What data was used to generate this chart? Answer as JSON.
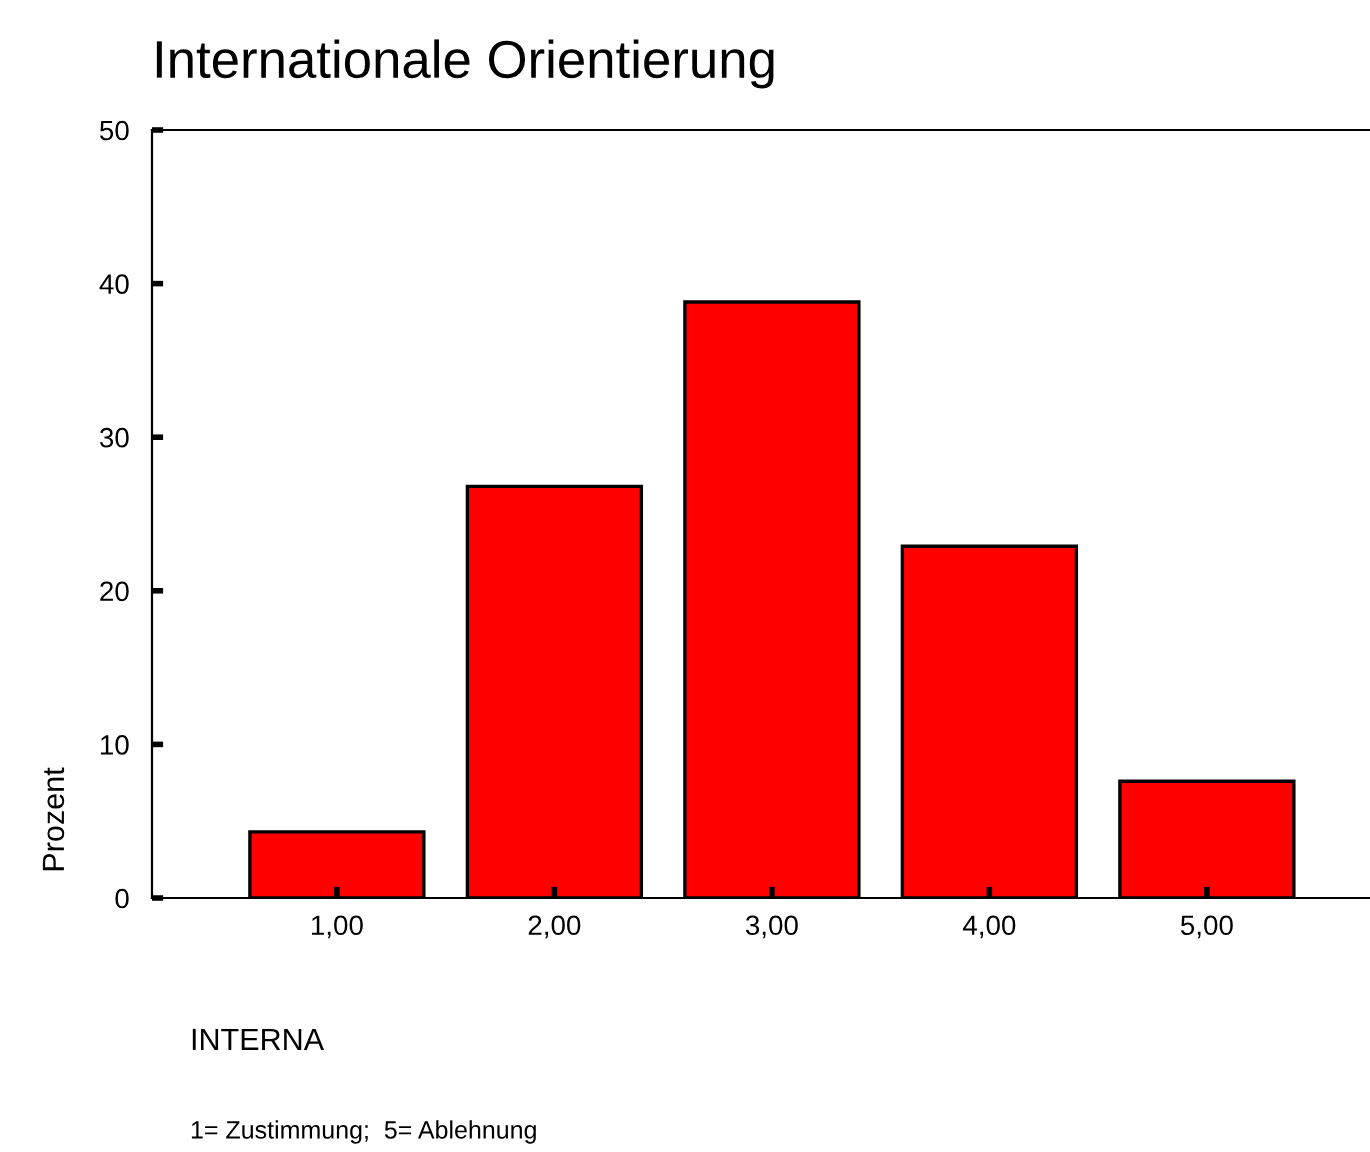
{
  "chart_data": {
    "type": "bar",
    "title": "Internationale Orientierung",
    "xlabel": "INTERNA",
    "ylabel": "Prozent",
    "annotations": [
      "1= Zustimmung;  5= Ablehnung"
    ],
    "categories": [
      "1,00",
      "2,00",
      "3,00",
      "4,00",
      "5,00"
    ],
    "values": [
      4.3,
      26.8,
      38.8,
      22.9,
      7.6
    ],
    "color": "#ff0000",
    "ylim": [
      0,
      50
    ],
    "yticks": [
      0,
      10,
      20,
      30,
      40,
      50
    ],
    "grid": false,
    "legend": false
  }
}
